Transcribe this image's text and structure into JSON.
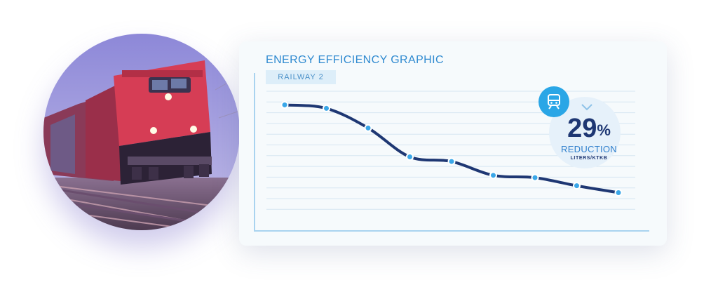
{
  "card": {
    "title": "ENERGY EFFICIENCY GRAPHIC",
    "badge": "RAILWAY 2"
  },
  "stat": {
    "value": "29",
    "unit_symbol": "%",
    "label": "REDUCTION",
    "unit": "LITERS/KTKB",
    "icon": "train-icon"
  },
  "photo": {
    "subject": "locomotive-photo"
  },
  "colors": {
    "accent": "#2f8ad0",
    "line": "#1e3773",
    "point": "#3aa7e8",
    "grid": "#d6e6f2"
  },
  "chart_data": {
    "type": "line",
    "title": "ENERGY EFFICIENCY GRAPHIC",
    "xlabel": "",
    "ylabel": "",
    "x": [
      1,
      2,
      3,
      4,
      5,
      6,
      7,
      8,
      9
    ],
    "values": [
      100,
      97,
      80,
      55,
      51,
      39,
      37,
      30,
      24
    ],
    "ylim": [
      0,
      110
    ],
    "grid": true,
    "axis_ticks_labeled": false
  }
}
